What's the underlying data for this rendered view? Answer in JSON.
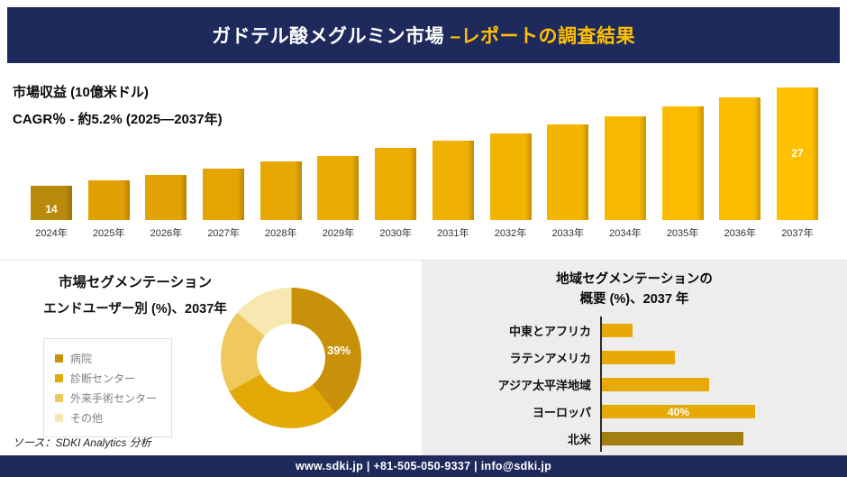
{
  "theme": {
    "navy": "#1F2A5C",
    "gold_accent": "#FFC000",
    "panel_bg": "#EDEDED"
  },
  "header": {
    "title_main": "ガドテル酸メグルミン市場 ",
    "title_accent": "–レポートの調査結果"
  },
  "revenue": {
    "metric_label": "市場収益 (10億米ドル)",
    "cagr_label": "CAGR％ - 約5.2% (2025―2037年)"
  },
  "enduser": {
    "title_line1": "市場セグメンテーション",
    "title_line2": "エンドユーザー別 (%)、2037年",
    "source": "ソース：SDKI Analytics 分析"
  },
  "regional": {
    "title_line1": "地域セグメンテーションの",
    "title_line2": "概要 (%)、2037 年"
  },
  "footer": {
    "contact": "www.sdki.jp | +81-505-050-9337 | info@sdki.jp"
  },
  "chart_data": [
    {
      "type": "bar",
      "title": "市場収益 (10億米ドル)",
      "subtitle": "CAGR％ - 約5.2% (2025―2037年)",
      "categories": [
        "2024年",
        "2025年",
        "2026年",
        "2027年",
        "2028年",
        "2029年",
        "2030年",
        "2031年",
        "2032年",
        "2033年",
        "2034年",
        "2035年",
        "2036年",
        "2037年"
      ],
      "values": [
        14,
        14.7,
        15.5,
        16.3,
        17.2,
        18,
        19,
        20,
        21,
        22.1,
        23.2,
        24.5,
        25.7,
        27
      ],
      "value_labels": [
        "14",
        "",
        "",
        "",
        "",
        "",
        "",
        "",
        "",
        "",
        "",
        "",
        "",
        "27"
      ],
      "ylim": [
        9.5,
        28
      ],
      "grid": false,
      "bar_colors": [
        "#BA8A0B",
        "#DFA004",
        "#E2A304",
        "#E4A503",
        "#E7A803",
        "#EAAB03",
        "#ECAD02",
        "#EFB002",
        "#F2B302",
        "#F4B501",
        "#F7B801",
        "#FABB01",
        "#FCBD00",
        "#FFC000"
      ]
    },
    {
      "type": "pie",
      "subtype": "donut",
      "title": "エンドユーザー別 (%)、2037年",
      "labels": [
        "病院",
        "診断センター",
        "外来手術センター",
        "その他"
      ],
      "values": [
        39,
        28,
        19,
        14
      ],
      "value_labels": [
        "39%",
        "",
        "",
        ""
      ],
      "colors": [
        "#C9900A",
        "#E2A907",
        "#EFC85E",
        "#F6E8B0"
      ],
      "start_angle_deg": -50,
      "draw_order": [
        3,
        0,
        1,
        2
      ],
      "legend_position": "left"
    },
    {
      "type": "bar",
      "orientation": "horizontal",
      "title": "地域セグメンテーションの概要 (%)、2037 年",
      "categories": [
        "中東とアフリカ",
        "ラテンアメリカ",
        "アジア太平洋地域",
        "ヨーロッパ",
        "北米"
      ],
      "values": [
        8,
        19,
        28,
        40,
        37
      ],
      "value_labels": [
        "",
        "",
        "",
        "40%",
        ""
      ],
      "colors": [
        "#E6A906",
        "#E6A906",
        "#E6A906",
        "#E6A906",
        "#A37E10"
      ],
      "xmax": 40,
      "grid": false
    }
  ]
}
